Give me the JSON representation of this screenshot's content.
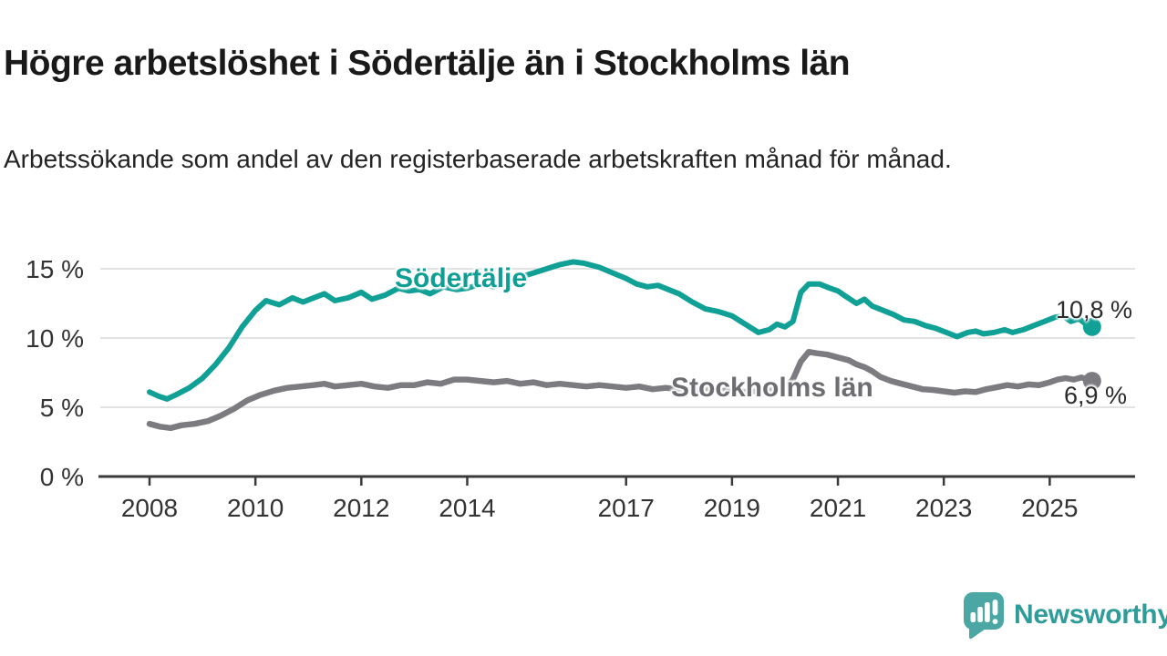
{
  "header": {
    "title": "Högre arbetslöshet i Södertälje än i Stockholms län",
    "subtitle": "Arbetssökande som andel av den registerbaserade arbetskraften månad för månad."
  },
  "chart_data": {
    "type": "line",
    "title": "Högre arbetslöshet i Södertälje än i Stockholms län",
    "xlabel": "",
    "ylabel": "",
    "unit": "%",
    "xlim": [
      2007.1,
      2026.6
    ],
    "ylim": [
      0,
      16.8
    ],
    "grid": "horizontal",
    "grid_color": "#d9d9d9",
    "axis_color": "#3a3a3a",
    "legend_position": "inline-labels",
    "yticks": [
      {
        "value": 0,
        "label": "0 %"
      },
      {
        "value": 5,
        "label": "5 %"
      },
      {
        "value": 10,
        "label": "10 %"
      },
      {
        "value": 15,
        "label": "15 %"
      }
    ],
    "xticks": [
      {
        "value": 2008,
        "label": "2008"
      },
      {
        "value": 2010,
        "label": "2010"
      },
      {
        "value": 2012,
        "label": "2012"
      },
      {
        "value": 2014,
        "label": "2014"
      },
      {
        "value": 2017,
        "label": "2017"
      },
      {
        "value": 2019,
        "label": "2019"
      },
      {
        "value": 2021,
        "label": "2021"
      },
      {
        "value": 2023,
        "label": "2023"
      },
      {
        "value": 2025,
        "label": "2025"
      }
    ],
    "series": [
      {
        "name": "Södertälje",
        "color": "#11a096",
        "label_color": "#0f9e94",
        "line_width": 6,
        "end_label": "10,8 %",
        "end_value": 10.8,
        "points": [
          [
            2008.0,
            6.1
          ],
          [
            2008.17,
            5.8
          ],
          [
            2008.33,
            5.6
          ],
          [
            2008.5,
            5.9
          ],
          [
            2008.75,
            6.4
          ],
          [
            2009.0,
            7.1
          ],
          [
            2009.25,
            8.1
          ],
          [
            2009.5,
            9.3
          ],
          [
            2009.75,
            10.8
          ],
          [
            2010.0,
            12.0
          ],
          [
            2010.2,
            12.7
          ],
          [
            2010.45,
            12.4
          ],
          [
            2010.7,
            12.9
          ],
          [
            2010.9,
            12.6
          ],
          [
            2011.1,
            12.9
          ],
          [
            2011.3,
            13.2
          ],
          [
            2011.5,
            12.7
          ],
          [
            2011.75,
            12.9
          ],
          [
            2012.0,
            13.3
          ],
          [
            2012.2,
            12.8
          ],
          [
            2012.45,
            13.1
          ],
          [
            2012.7,
            13.6
          ],
          [
            2012.9,
            13.4
          ],
          [
            2013.1,
            13.5
          ],
          [
            2013.3,
            13.2
          ],
          [
            2013.55,
            13.7
          ],
          [
            2013.8,
            13.5
          ],
          [
            2014.0,
            13.6
          ],
          [
            2014.25,
            13.9
          ],
          [
            2014.5,
            13.7
          ],
          [
            2014.75,
            14.1
          ],
          [
            2015.0,
            14.4
          ],
          [
            2015.25,
            14.7
          ],
          [
            2015.5,
            15.0
          ],
          [
            2015.75,
            15.3
          ],
          [
            2016.0,
            15.5
          ],
          [
            2016.2,
            15.4
          ],
          [
            2016.5,
            15.1
          ],
          [
            2016.75,
            14.7
          ],
          [
            2017.0,
            14.3
          ],
          [
            2017.2,
            13.9
          ],
          [
            2017.4,
            13.7
          ],
          [
            2017.6,
            13.8
          ],
          [
            2017.8,
            13.5
          ],
          [
            2018.0,
            13.2
          ],
          [
            2018.25,
            12.6
          ],
          [
            2018.5,
            12.1
          ],
          [
            2018.75,
            11.9
          ],
          [
            2019.0,
            11.6
          ],
          [
            2019.25,
            11.0
          ],
          [
            2019.5,
            10.4
          ],
          [
            2019.7,
            10.6
          ],
          [
            2019.85,
            11.0
          ],
          [
            2020.0,
            10.8
          ],
          [
            2020.15,
            11.2
          ],
          [
            2020.3,
            13.3
          ],
          [
            2020.45,
            13.9
          ],
          [
            2020.65,
            13.9
          ],
          [
            2020.85,
            13.6
          ],
          [
            2021.0,
            13.4
          ],
          [
            2021.15,
            13.0
          ],
          [
            2021.35,
            12.5
          ],
          [
            2021.5,
            12.8
          ],
          [
            2021.65,
            12.3
          ],
          [
            2021.85,
            12.0
          ],
          [
            2022.05,
            11.7
          ],
          [
            2022.25,
            11.3
          ],
          [
            2022.45,
            11.2
          ],
          [
            2022.65,
            10.9
          ],
          [
            2022.85,
            10.7
          ],
          [
            2023.05,
            10.4
          ],
          [
            2023.25,
            10.1
          ],
          [
            2023.45,
            10.4
          ],
          [
            2023.6,
            10.5
          ],
          [
            2023.75,
            10.3
          ],
          [
            2023.95,
            10.4
          ],
          [
            2024.15,
            10.6
          ],
          [
            2024.3,
            10.4
          ],
          [
            2024.5,
            10.6
          ],
          [
            2024.7,
            10.9
          ],
          [
            2024.9,
            11.2
          ],
          [
            2025.1,
            11.5
          ],
          [
            2025.25,
            11.6
          ],
          [
            2025.4,
            11.2
          ],
          [
            2025.55,
            11.4
          ],
          [
            2025.65,
            11.1
          ],
          [
            2025.8,
            10.8
          ]
        ]
      },
      {
        "name": "Stockholms län",
        "color": "#7b7b80",
        "label_color": "#6d6d72",
        "line_width": 6.5,
        "end_label": "6,9 %",
        "end_value": 6.9,
        "points": [
          [
            2008.0,
            3.8
          ],
          [
            2008.2,
            3.6
          ],
          [
            2008.4,
            3.5
          ],
          [
            2008.6,
            3.7
          ],
          [
            2008.85,
            3.8
          ],
          [
            2009.1,
            4.0
          ],
          [
            2009.35,
            4.4
          ],
          [
            2009.6,
            4.9
          ],
          [
            2009.85,
            5.5
          ],
          [
            2010.1,
            5.9
          ],
          [
            2010.35,
            6.2
          ],
          [
            2010.6,
            6.4
          ],
          [
            2010.85,
            6.5
          ],
          [
            2011.1,
            6.6
          ],
          [
            2011.3,
            6.7
          ],
          [
            2011.5,
            6.5
          ],
          [
            2011.75,
            6.6
          ],
          [
            2012.0,
            6.7
          ],
          [
            2012.25,
            6.5
          ],
          [
            2012.5,
            6.4
          ],
          [
            2012.75,
            6.6
          ],
          [
            2013.0,
            6.6
          ],
          [
            2013.25,
            6.8
          ],
          [
            2013.5,
            6.7
          ],
          [
            2013.75,
            7.0
          ],
          [
            2014.0,
            7.0
          ],
          [
            2014.25,
            6.9
          ],
          [
            2014.5,
            6.8
          ],
          [
            2014.75,
            6.9
          ],
          [
            2015.0,
            6.7
          ],
          [
            2015.25,
            6.8
          ],
          [
            2015.5,
            6.6
          ],
          [
            2015.75,
            6.7
          ],
          [
            2016.0,
            6.6
          ],
          [
            2016.25,
            6.5
          ],
          [
            2016.5,
            6.6
          ],
          [
            2016.75,
            6.5
          ],
          [
            2017.0,
            6.4
          ],
          [
            2017.25,
            6.5
          ],
          [
            2017.5,
            6.3
          ],
          [
            2017.75,
            6.4
          ],
          [
            2018.0,
            6.3
          ],
          [
            2018.25,
            6.2
          ],
          [
            2018.5,
            6.3
          ],
          [
            2018.75,
            6.2
          ],
          [
            2019.0,
            6.2
          ],
          [
            2019.25,
            6.1
          ],
          [
            2019.5,
            6.2
          ],
          [
            2019.75,
            6.3
          ],
          [
            2020.0,
            6.4
          ],
          [
            2020.15,
            7.0
          ],
          [
            2020.3,
            8.3
          ],
          [
            2020.45,
            9.0
          ],
          [
            2020.6,
            8.9
          ],
          [
            2020.8,
            8.8
          ],
          [
            2021.0,
            8.6
          ],
          [
            2021.2,
            8.4
          ],
          [
            2021.35,
            8.1
          ],
          [
            2021.5,
            7.9
          ],
          [
            2021.65,
            7.6
          ],
          [
            2021.8,
            7.2
          ],
          [
            2022.0,
            6.9
          ],
          [
            2022.2,
            6.7
          ],
          [
            2022.4,
            6.5
          ],
          [
            2022.6,
            6.3
          ],
          [
            2022.8,
            6.25
          ],
          [
            2023.0,
            6.15
          ],
          [
            2023.2,
            6.05
          ],
          [
            2023.4,
            6.15
          ],
          [
            2023.6,
            6.1
          ],
          [
            2023.8,
            6.3
          ],
          [
            2024.0,
            6.45
          ],
          [
            2024.2,
            6.6
          ],
          [
            2024.4,
            6.5
          ],
          [
            2024.6,
            6.65
          ],
          [
            2024.8,
            6.6
          ],
          [
            2025.0,
            6.8
          ],
          [
            2025.15,
            7.0
          ],
          [
            2025.3,
            7.1
          ],
          [
            2025.45,
            7.0
          ],
          [
            2025.6,
            7.15
          ],
          [
            2025.8,
            6.9
          ]
        ]
      }
    ]
  },
  "branding": {
    "logo_text": "Newsworthy",
    "logo_color": "#2f9c9a",
    "icon_color": "#4ba7a4",
    "icon": "newsworthy-speech-bubble-chart-icon"
  }
}
